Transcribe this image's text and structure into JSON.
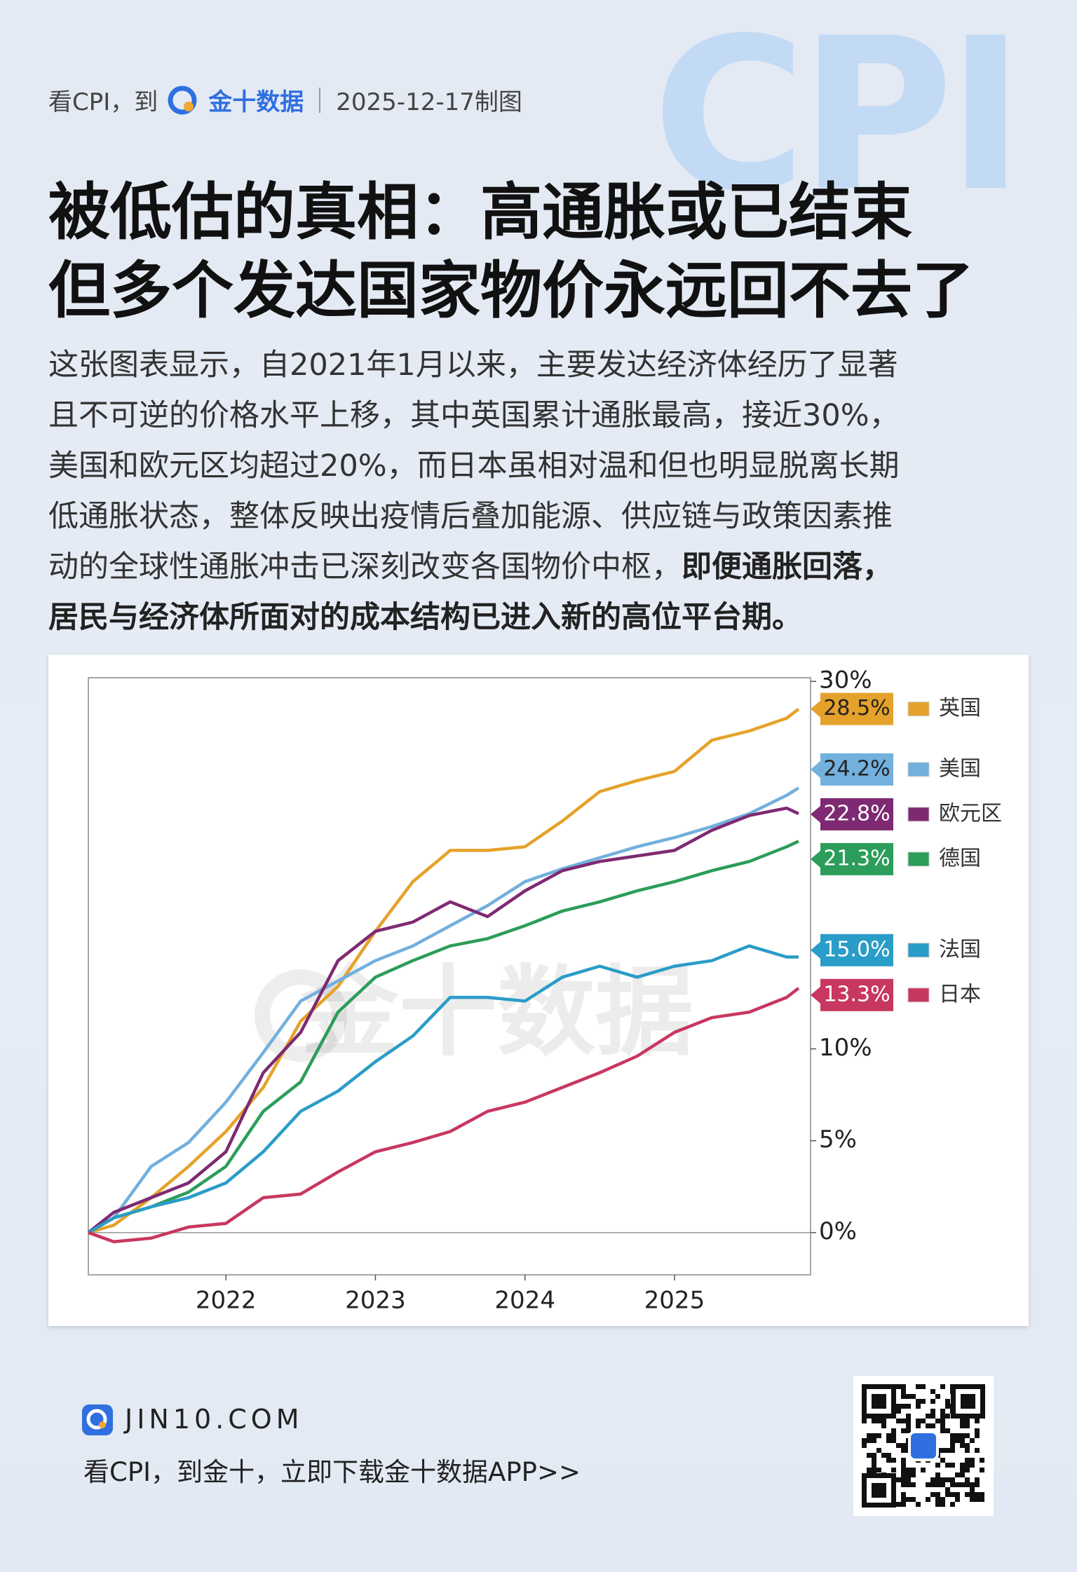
{
  "decoration": "CPI",
  "header": {
    "prefix": "看CPI，到",
    "brand": "金十数据",
    "date": "2025-12-17制图"
  },
  "headline": {
    "lines": [
      "被低估的真相：高通胀或已结束",
      "但多个发达国家物价永远回不去了"
    ]
  },
  "body": {
    "lines": [
      "这张图表显示，自2021年1月以来，主要发达经济体经历了显著",
      "且不可逆的价格水平上移，其中英国累计通胀最高，接近30%，",
      "美国和欧元区均超过20%，而日本虽相对温和但也明显脱离长期",
      "低通胀状态，整体反映出疫情后叠加能源、供应链与政策因素推",
      "动的全球性通胀冲击已深刻改变各国物价中枢，"
    ],
    "emphasis": [
      "即便通胀回落，",
      "居民与经济体所面对的成本结构已进入新的高位平台期。"
    ]
  },
  "chart_data": {
    "type": "line",
    "watermark": "金十数据",
    "legend_position": "right",
    "grid": false,
    "x": [
      2021.08,
      2021.25,
      2021.5,
      2021.75,
      2022,
      2022.25,
      2022.5,
      2022.75,
      2023,
      2023.25,
      2023.5,
      2023.75,
      2024,
      2024.25,
      2024.5,
      2024.75,
      2025,
      2025.25,
      2025.5,
      2025.75,
      2025.83
    ],
    "xlim": [
      2021.08,
      2025.91
    ],
    "xticks": [
      2022,
      2023,
      2024,
      2025
    ],
    "ylim": [
      -2.3,
      30.2
    ],
    "yticks": [
      {
        "value": 0,
        "label": "0%"
      },
      {
        "value": 5,
        "label": "5%"
      },
      {
        "value": 10,
        "label": "10%"
      },
      {
        "value": 30,
        "label": "30%"
      }
    ],
    "series": [
      {
        "name": "英国",
        "color": "#e5a22a",
        "values": [
          0,
          0.4,
          1.9,
          3.6,
          5.5,
          7.9,
          11.5,
          13.4,
          16.4,
          19.1,
          20.8,
          20.8,
          21,
          22.4,
          24,
          24.6,
          25.1,
          26.8,
          27.3,
          28,
          28.5
        ],
        "value_labels": [
          null,
          null,
          null,
          null,
          null,
          null,
          null,
          null,
          null,
          null,
          null,
          null,
          null,
          null,
          null,
          null,
          null,
          null,
          null,
          null,
          "28.5%"
        ]
      },
      {
        "name": "美国",
        "color": "#72b0dd",
        "values": [
          0,
          0.8,
          3.6,
          4.9,
          7.1,
          9.8,
          12.6,
          13.7,
          14.8,
          15.6,
          16.7,
          17.8,
          19.1,
          19.8,
          20.4,
          21,
          21.5,
          22.1,
          22.8,
          23.8,
          24.2
        ],
        "value_labels": [
          null,
          null,
          null,
          null,
          null,
          null,
          null,
          null,
          null,
          null,
          null,
          null,
          null,
          null,
          null,
          null,
          null,
          null,
          null,
          null,
          "24.2%"
        ]
      },
      {
        "name": "欧元区",
        "color": "#7e2a72",
        "values": [
          0,
          1.1,
          1.9,
          2.7,
          4.4,
          8.7,
          10.9,
          14.8,
          16.4,
          16.9,
          18,
          17.2,
          18.6,
          19.7,
          20.2,
          20.5,
          20.8,
          21.9,
          22.7,
          23.1,
          22.8
        ],
        "value_labels": [
          null,
          null,
          null,
          null,
          null,
          null,
          null,
          null,
          null,
          null,
          null,
          null,
          null,
          null,
          null,
          null,
          null,
          null,
          null,
          null,
          "22.8%"
        ]
      },
      {
        "name": "德国",
        "color": "#2c9d5a",
        "values": [
          0,
          0.8,
          1.4,
          2.2,
          3.6,
          6.6,
          8.2,
          12,
          13.9,
          14.8,
          15.6,
          16,
          16.7,
          17.5,
          18,
          18.6,
          19.1,
          19.7,
          20.2,
          21,
          21.3
        ],
        "value_labels": [
          null,
          null,
          null,
          null,
          null,
          null,
          null,
          null,
          null,
          null,
          null,
          null,
          null,
          null,
          null,
          null,
          null,
          null,
          null,
          null,
          "21.3%"
        ]
      },
      {
        "name": "法国",
        "color": "#2a9cc8",
        "values": [
          0,
          0.8,
          1.4,
          1.9,
          2.7,
          4.4,
          6.6,
          7.7,
          9.3,
          10.7,
          12.8,
          12.8,
          12.6,
          13.9,
          14.5,
          13.9,
          14.5,
          14.8,
          15.6,
          15,
          15
        ],
        "value_labels": [
          null,
          null,
          null,
          null,
          null,
          null,
          null,
          null,
          null,
          null,
          null,
          null,
          null,
          null,
          null,
          null,
          null,
          null,
          null,
          null,
          "15.0%"
        ]
      },
      {
        "name": "日本",
        "color": "#c8375f",
        "values": [
          0,
          -0.5,
          -0.3,
          0.3,
          0.5,
          1.9,
          2.1,
          3.3,
          4.4,
          4.9,
          5.5,
          6.6,
          7.1,
          7.9,
          8.7,
          9.6,
          10.9,
          11.7,
          12,
          12.8,
          13.3
        ],
        "value_labels": [
          null,
          null,
          null,
          null,
          null,
          null,
          null,
          null,
          null,
          null,
          null,
          null,
          null,
          null,
          null,
          null,
          null,
          null,
          null,
          null,
          "13.3%"
        ]
      }
    ]
  },
  "footer": {
    "site": "JIN10.COM",
    "tagline": "看CPI，到金十，立即下载金十数据APP>>"
  }
}
